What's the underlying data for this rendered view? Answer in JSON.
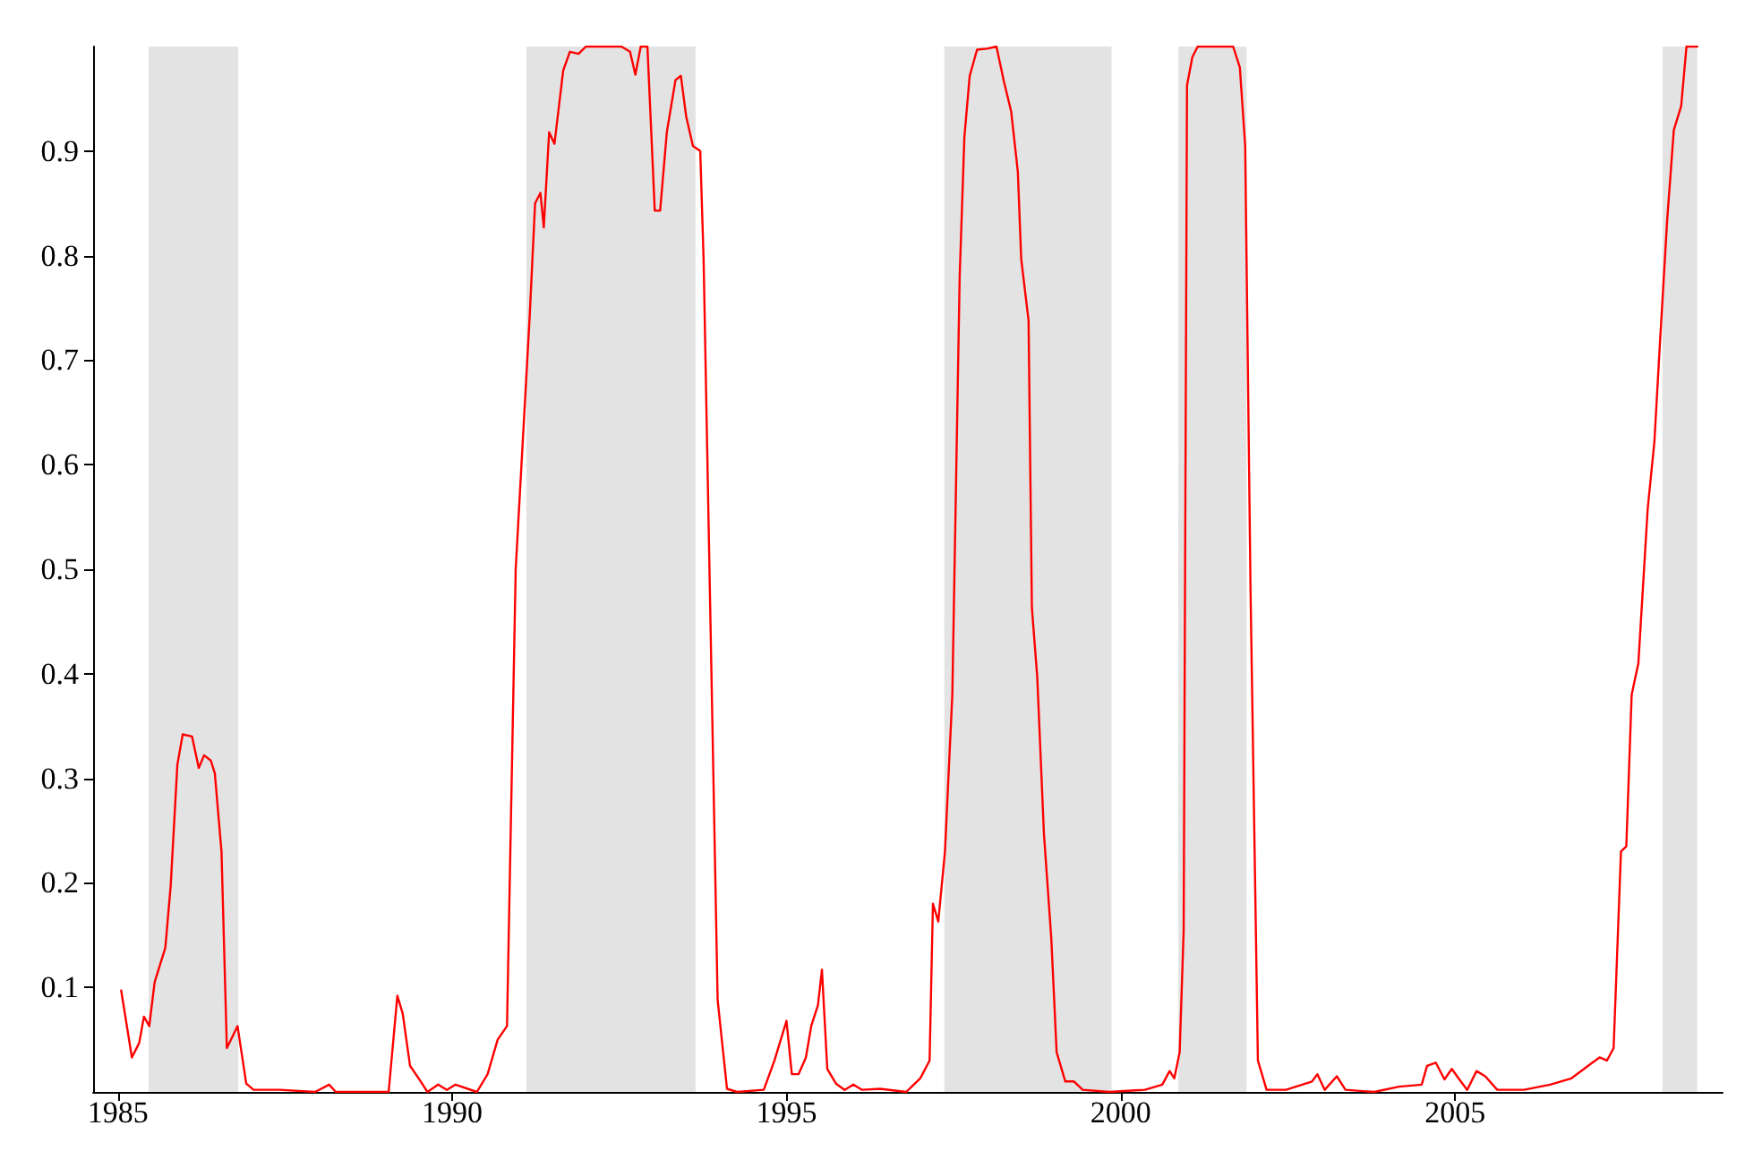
{
  "chart_data": {
    "type": "line",
    "xlim": [
      1984.63,
      2009.0
    ],
    "xticks": [
      1985,
      1990,
      1995,
      2000,
      2005
    ],
    "ylim": [
      0,
      1
    ],
    "yticks": [
      0.1,
      0.2,
      0.3,
      0.4,
      0.5,
      0.6,
      0.7,
      0.8,
      0.9
    ],
    "marker": "none",
    "line_style": "solid",
    "bands": [
      {
        "axis": "x",
        "from": 1985.46,
        "to": 1986.8,
        "color": "#c0c0c0"
      },
      {
        "axis": "x",
        "from": 1991.11,
        "to": 1993.64,
        "color": "#c0c0c0"
      },
      {
        "axis": "x",
        "from": 1997.36,
        "to": 1999.86,
        "color": "#c0c0c0"
      },
      {
        "axis": "x",
        "from": 2000.86,
        "to": 2001.88,
        "color": "#c0c0c0"
      },
      {
        "axis": "x",
        "from": 2008.1,
        "to": 2008.62,
        "color": "#c0c0c0"
      }
    ],
    "series": [
      {
        "color": "#ff0000",
        "x": [
          1985.05,
          1985.21,
          1985.32,
          1985.39,
          1985.47,
          1985.55,
          1985.71,
          1985.79,
          1985.89,
          1985.97,
          1986.11,
          1986.21,
          1986.29,
          1986.39,
          1986.45,
          1986.55,
          1986.63,
          1986.79,
          1986.92,
          1987.03,
          1987.42,
          1987.95,
          1988.16,
          1988.26,
          1989.05,
          1989.18,
          1989.26,
          1989.37,
          1989.53,
          1989.63,
          1989.79,
          1989.92,
          1990.05,
          1990.37,
          1990.53,
          1990.68,
          1990.82,
          1990.95,
          1991.16,
          1991.24,
          1991.32,
          1991.37,
          1991.45,
          1991.53,
          1991.66,
          1991.76,
          1991.89,
          1992.0,
          1992.24,
          1992.53,
          1992.66,
          1992.74,
          1992.82,
          1992.92,
          1993.03,
          1993.11,
          1993.21,
          1993.34,
          1993.42,
          1993.5,
          1993.6,
          1993.71,
          1993.76,
          1993.97,
          1994.11,
          1994.26,
          1994.66,
          1994.82,
          1995.0,
          1995.08,
          1995.18,
          1995.29,
          1995.37,
          1995.47,
          1995.53,
          1995.61,
          1995.74,
          1995.87,
          1996.0,
          1996.13,
          1996.4,
          1996.79,
          1997.0,
          1997.14,
          1997.19,
          1997.27,
          1997.37,
          1997.48,
          1997.59,
          1997.66,
          1997.74,
          1997.85,
          1998.0,
          1998.14,
          1998.25,
          1998.36,
          1998.46,
          1998.51,
          1998.62,
          1998.67,
          1998.75,
          1998.85,
          1998.96,
          1999.04,
          1999.17,
          1999.3,
          1999.43,
          1999.83,
          2000.36,
          2000.62,
          2000.73,
          2000.8,
          2000.88,
          2000.94,
          2000.99,
          2001.07,
          2001.15,
          2001.41,
          2001.68,
          2001.78,
          2001.86,
          2001.94,
          2002.05,
          2002.18,
          2002.47,
          2002.86,
          2002.94,
          2003.05,
          2003.23,
          2003.36,
          2003.79,
          2004.16,
          2004.5,
          2004.58,
          2004.71,
          2004.84,
          2004.95,
          2005.05,
          2005.18,
          2005.32,
          2005.45,
          2005.63,
          2006.03,
          2006.42,
          2006.74,
          2007.03,
          2007.16,
          2007.27,
          2007.37,
          2007.48,
          2007.56,
          2007.64,
          2007.74,
          2007.88,
          2007.98,
          2008.06,
          2008.17,
          2008.27,
          2008.38,
          2008.46,
          2008.62
        ],
        "values": [
          0.097,
          0.033,
          0.047,
          0.072,
          0.063,
          0.105,
          0.138,
          0.197,
          0.313,
          0.342,
          0.34,
          0.31,
          0.322,
          0.317,
          0.305,
          0.23,
          0.042,
          0.063,
          0.008,
          0.002,
          0.002,
          0.0,
          0.007,
          0.0,
          0.0,
          0.092,
          0.075,
          0.025,
          0.01,
          0.0,
          0.007,
          0.002,
          0.007,
          0.0,
          0.017,
          0.05,
          0.063,
          0.5,
          0.743,
          0.85,
          0.86,
          0.827,
          0.918,
          0.907,
          0.977,
          0.995,
          0.993,
          1.0,
          1.0,
          1.0,
          0.995,
          0.973,
          1.0,
          1.0,
          0.843,
          0.843,
          0.918,
          0.968,
          0.972,
          0.933,
          0.905,
          0.9,
          0.797,
          0.088,
          0.003,
          0.0,
          0.002,
          0.03,
          0.068,
          0.017,
          0.017,
          0.033,
          0.063,
          0.083,
          0.117,
          0.022,
          0.008,
          0.002,
          0.007,
          0.002,
          0.003,
          0.0,
          0.013,
          0.03,
          0.18,
          0.163,
          0.23,
          0.38,
          0.78,
          0.913,
          0.972,
          0.997,
          0.998,
          1.0,
          0.967,
          0.938,
          0.88,
          0.797,
          0.738,
          0.463,
          0.397,
          0.247,
          0.147,
          0.038,
          0.01,
          0.01,
          0.002,
          0.0,
          0.002,
          0.007,
          0.02,
          0.013,
          0.038,
          0.155,
          0.963,
          0.99,
          1.0,
          1.0,
          1.0,
          0.98,
          0.905,
          0.48,
          0.03,
          0.002,
          0.002,
          0.01,
          0.017,
          0.002,
          0.015,
          0.002,
          0.0,
          0.005,
          0.007,
          0.025,
          0.028,
          0.012,
          0.022,
          0.013,
          0.002,
          0.02,
          0.015,
          0.002,
          0.002,
          0.007,
          0.013,
          0.027,
          0.033,
          0.03,
          0.042,
          0.23,
          0.235,
          0.38,
          0.41,
          0.558,
          0.622,
          0.713,
          0.833,
          0.92,
          0.943,
          1.0,
          1.0
        ]
      }
    ]
  }
}
